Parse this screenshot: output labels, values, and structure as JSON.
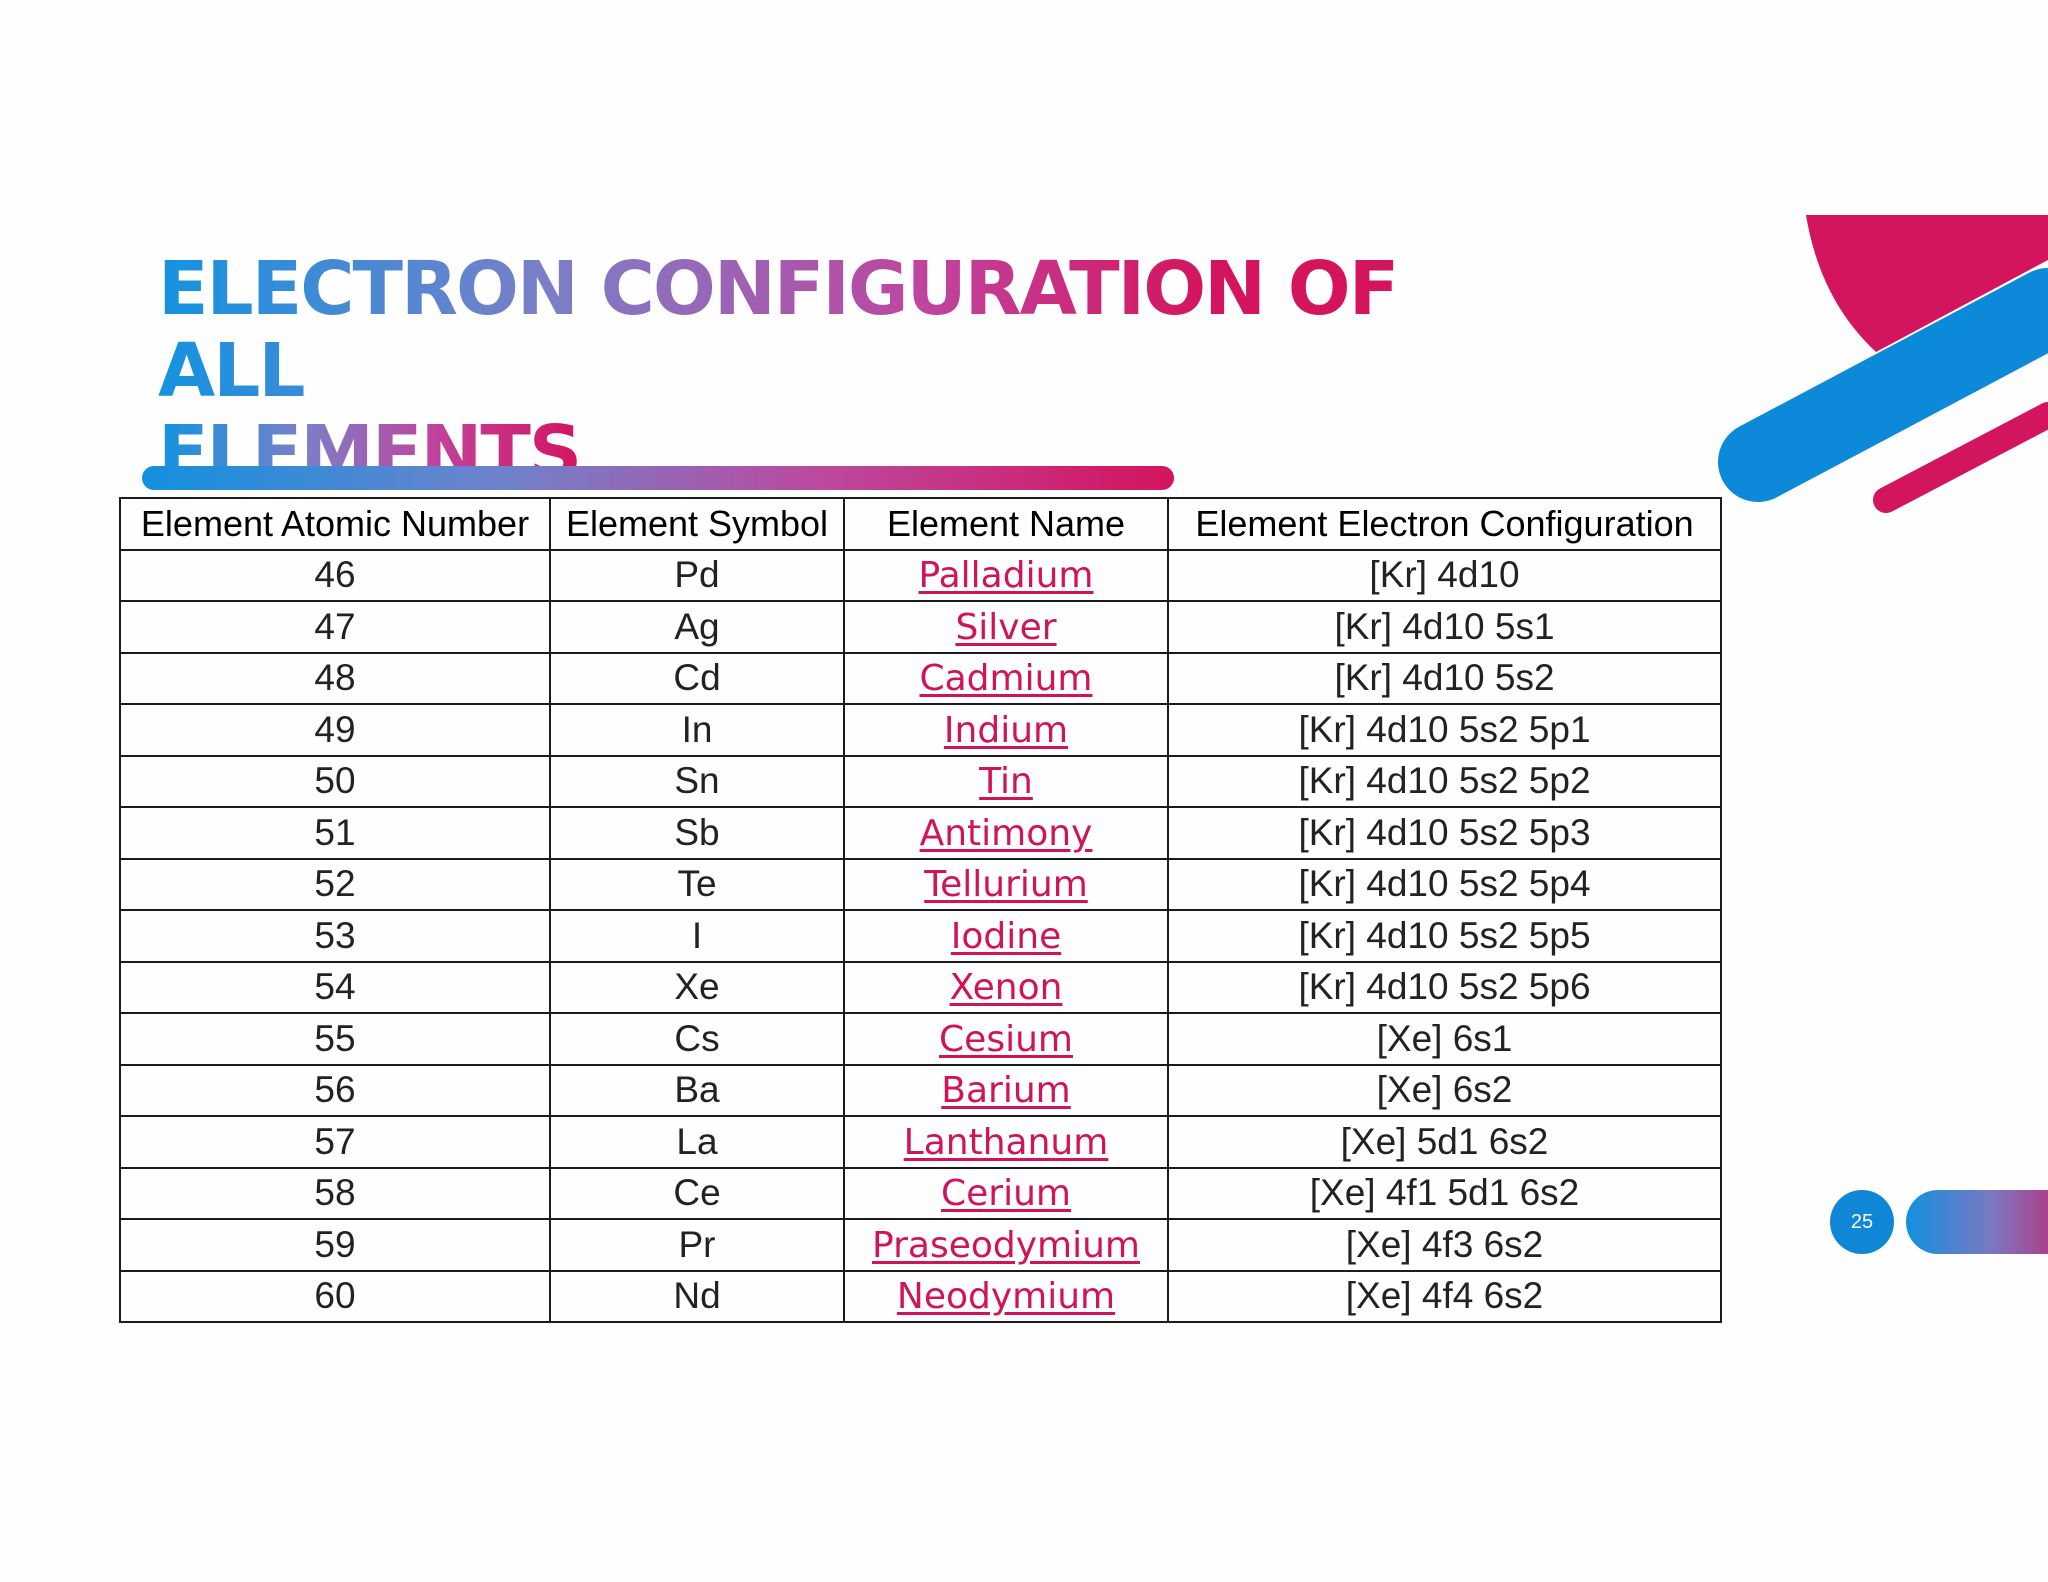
{
  "slide": {
    "title_line1": "ELECTRON CONFIGURATION OF ALL",
    "title_line2": "ELEMENTS",
    "page_number": "25"
  },
  "colors": {
    "accent_blue": "#1291df",
    "accent_magenta": "#d4145e",
    "link_color": "#d0145a"
  },
  "table": {
    "headers": [
      "Element Atomic Number",
      "Element Symbol",
      "Element Name",
      "Element Electron Configuration"
    ],
    "rows": [
      {
        "number": "46",
        "symbol": "Pd",
        "name": "Palladium",
        "config": "[Kr] 4d10"
      },
      {
        "number": "47",
        "symbol": "Ag",
        "name": "Silver",
        "config": "[Kr] 4d10 5s1"
      },
      {
        "number": "48",
        "symbol": "Cd",
        "name": "Cadmium",
        "config": "[Kr] 4d10 5s2"
      },
      {
        "number": "49",
        "symbol": "In",
        "name": "Indium",
        "config": "[Kr] 4d10 5s2 5p1"
      },
      {
        "number": "50",
        "symbol": "Sn",
        "name": "Tin",
        "config": "[Kr] 4d10 5s2 5p2"
      },
      {
        "number": "51",
        "symbol": "Sb",
        "name": "Antimony",
        "config": "[Kr] 4d10 5s2 5p3"
      },
      {
        "number": "52",
        "symbol": "Te",
        "name": "Tellurium",
        "config": "[Kr] 4d10 5s2 5p4"
      },
      {
        "number": "53",
        "symbol": "I",
        "name": "Iodine",
        "config": "[Kr] 4d10 5s2 5p5"
      },
      {
        "number": "54",
        "symbol": "Xe",
        "name": "Xenon",
        "config": "[Kr] 4d10 5s2 5p6"
      },
      {
        "number": "55",
        "symbol": "Cs",
        "name": "Cesium",
        "config": "[Xe] 6s1"
      },
      {
        "number": "56",
        "symbol": "Ba",
        "name": "Barium",
        "config": "[Xe] 6s2"
      },
      {
        "number": "57",
        "symbol": "La",
        "name": "Lanthanum",
        "config": "[Xe] 5d1 6s2"
      },
      {
        "number": "58",
        "symbol": "Ce",
        "name": "Cerium",
        "config": "[Xe] 4f1 5d1 6s2"
      },
      {
        "number": "59",
        "symbol": "Pr",
        "name": "Praseodymium",
        "config": "[Xe] 4f3 6s2"
      },
      {
        "number": "60",
        "symbol": "Nd",
        "name": "Neodymium",
        "config": "[Xe] 4f4 6s2"
      }
    ]
  }
}
